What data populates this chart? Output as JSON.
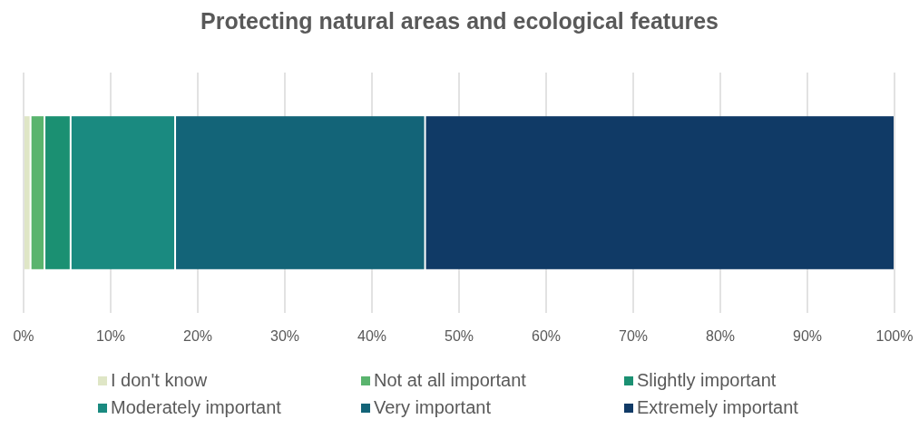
{
  "chart_data": {
    "type": "bar",
    "title": "Protecting natural areas and ecological features",
    "orientation": "horizontal",
    "stacked": true,
    "categories": [
      null
    ],
    "series": [
      {
        "name": "I don't know",
        "color": "#dfe6c6",
        "values": [
          0.8
        ]
      },
      {
        "name": "Not at all important",
        "color": "#5ab46e",
        "values": [
          1.6
        ]
      },
      {
        "name": "Slightly important",
        "color": "#1b9072",
        "values": [
          3.0
        ]
      },
      {
        "name": "Moderately important",
        "color": "#1a8a80",
        "values": [
          12.0
        ]
      },
      {
        "name": "Very important",
        "color": "#136478",
        "values": [
          28.7
        ]
      },
      {
        "name": "Extremely important",
        "color": "#103a66",
        "values": [
          53.9
        ]
      }
    ],
    "xlim": [
      0,
      100
    ],
    "xticks": [
      {
        "value": 0,
        "label": "0%"
      },
      {
        "value": 10,
        "label": "10%"
      },
      {
        "value": 20,
        "label": "20%"
      },
      {
        "value": 30,
        "label": "30%"
      },
      {
        "value": 40,
        "label": "40%"
      },
      {
        "value": 50,
        "label": "50%"
      },
      {
        "value": 60,
        "label": "60%"
      },
      {
        "value": 70,
        "label": "70%"
      },
      {
        "value": 80,
        "label": "80%"
      },
      {
        "value": 90,
        "label": "90%"
      },
      {
        "value": 100,
        "label": "100%"
      }
    ],
    "grid": "x",
    "legend": "bottom"
  }
}
